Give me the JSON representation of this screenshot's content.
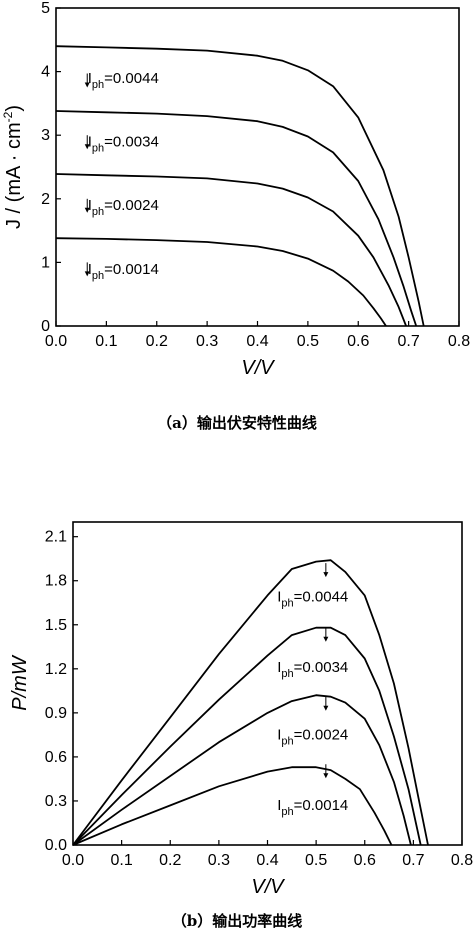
{
  "chart_data": [
    {
      "type": "line",
      "xlabel": "V/V",
      "ylabel": "J / (mA · cm",
      "ylabel_sup": "-2",
      "ylabel_close": ")",
      "xlim": [
        0,
        0.8
      ],
      "ylim": [
        0,
        5
      ],
      "xticks": [
        0.0,
        0.1,
        0.2,
        0.3,
        0.4,
        0.5,
        0.6,
        0.7,
        0.8
      ],
      "xtick_labels": [
        "0.0",
        "0.1",
        "0.2",
        "0.3",
        "0.4",
        "0.5",
        "0.6",
        "0.7",
        "0.8"
      ],
      "yticks": [
        0,
        1,
        2,
        3,
        4,
        5
      ],
      "ytick_labels": [
        "0",
        "1",
        "2",
        "3",
        "4",
        "5"
      ],
      "grid": false,
      "caption": "（a）输出伏安特性曲线",
      "series": [
        {
          "label_prefix": "I",
          "label_sub": "ph",
          "label_value": "=0.0044",
          "label_anchor": [
            0.062,
            3.97
          ],
          "label_pos": [
            0.063,
            3.82
          ],
          "x": [
            0.0,
            0.1,
            0.2,
            0.3,
            0.4,
            0.45,
            0.5,
            0.55,
            0.6,
            0.65,
            0.68,
            0.7,
            0.72,
            0.73
          ],
          "y": [
            4.4,
            4.38,
            4.36,
            4.33,
            4.25,
            4.17,
            4.02,
            3.77,
            3.28,
            2.45,
            1.72,
            1.08,
            0.38,
            0.0
          ]
        },
        {
          "label_prefix": "I",
          "label_sub": "ph",
          "label_value": "=0.0034",
          "label_anchor": [
            0.062,
            3.0
          ],
          "label_pos": [
            0.063,
            2.82
          ],
          "x": [
            0.0,
            0.1,
            0.2,
            0.3,
            0.4,
            0.45,
            0.5,
            0.55,
            0.6,
            0.64,
            0.67,
            0.69,
            0.705,
            0.715
          ],
          "y": [
            3.38,
            3.36,
            3.34,
            3.3,
            3.22,
            3.13,
            2.98,
            2.73,
            2.28,
            1.68,
            1.08,
            0.62,
            0.24,
            0.0
          ]
        },
        {
          "label_prefix": "I",
          "label_sub": "ph",
          "label_value": "=0.0024",
          "label_anchor": [
            0.062,
            2.0
          ],
          "label_pos": [
            0.063,
            1.82
          ],
          "x": [
            0.0,
            0.1,
            0.2,
            0.3,
            0.4,
            0.45,
            0.5,
            0.55,
            0.6,
            0.63,
            0.66,
            0.68,
            0.695
          ],
          "y": [
            2.39,
            2.37,
            2.35,
            2.32,
            2.24,
            2.16,
            2.02,
            1.8,
            1.42,
            1.08,
            0.64,
            0.3,
            0.0
          ]
        },
        {
          "label_prefix": "I",
          "label_sub": "ph",
          "label_value": "=0.0014",
          "label_anchor": [
            0.062,
            1.0
          ],
          "label_pos": [
            0.063,
            0.82
          ],
          "x": [
            0.0,
            0.1,
            0.2,
            0.3,
            0.4,
            0.45,
            0.5,
            0.55,
            0.58,
            0.61,
            0.63,
            0.645,
            0.655
          ],
          "y": [
            1.38,
            1.37,
            1.35,
            1.32,
            1.25,
            1.18,
            1.06,
            0.87,
            0.7,
            0.48,
            0.28,
            0.12,
            0.0
          ]
        }
      ]
    },
    {
      "type": "line",
      "xlabel": "V/V",
      "ylabel": "P/mW",
      "xlim": [
        0,
        0.8
      ],
      "ylim": [
        0,
        2.2
      ],
      "xticks": [
        0.0,
        0.1,
        0.2,
        0.3,
        0.4,
        0.5,
        0.6,
        0.7,
        0.8
      ],
      "xtick_labels": [
        "0.0",
        "0.1",
        "0.2",
        "0.3",
        "0.4",
        "0.5",
        "0.6",
        "0.7",
        "0.8"
      ],
      "yticks": [
        0.0,
        0.3,
        0.6,
        0.9,
        1.2,
        1.5,
        1.8,
        2.1
      ],
      "ytick_labels": [
        "0.0",
        "0.3",
        "0.6",
        "0.9",
        "1.2",
        "1.5",
        "1.8",
        "2.1"
      ],
      "grid": false,
      "caption": "（b）输出功率曲线",
      "series": [
        {
          "label_prefix": "I",
          "label_sub": "ph",
          "label_value": "=0.0044",
          "label_anchor": [
            0.52,
            1.92
          ],
          "label_pos": [
            0.42,
            1.66
          ],
          "x": [
            0.0,
            0.1,
            0.2,
            0.3,
            0.4,
            0.45,
            0.5,
            0.53,
            0.56,
            0.6,
            0.63,
            0.66,
            0.69,
            0.71,
            0.73
          ],
          "y": [
            0.0,
            0.44,
            0.87,
            1.3,
            1.7,
            1.88,
            1.93,
            1.94,
            1.86,
            1.7,
            1.43,
            1.1,
            0.66,
            0.33,
            0.0
          ]
        },
        {
          "label_prefix": "I",
          "label_sub": "ph",
          "label_value": "=0.0034",
          "label_anchor": [
            0.52,
            1.48
          ],
          "label_pos": [
            0.42,
            1.18
          ],
          "x": [
            0.0,
            0.1,
            0.2,
            0.3,
            0.4,
            0.45,
            0.5,
            0.53,
            0.56,
            0.6,
            0.63,
            0.66,
            0.69,
            0.715
          ],
          "y": [
            0.0,
            0.34,
            0.67,
            0.99,
            1.29,
            1.43,
            1.48,
            1.48,
            1.43,
            1.27,
            1.05,
            0.74,
            0.38,
            0.0
          ]
        },
        {
          "label_prefix": "I",
          "label_sub": "ph",
          "label_value": "=0.0024",
          "label_anchor": [
            0.52,
            1.01
          ],
          "label_pos": [
            0.42,
            0.72
          ],
          "x": [
            0.0,
            0.1,
            0.2,
            0.3,
            0.4,
            0.45,
            0.5,
            0.53,
            0.56,
            0.6,
            0.63,
            0.66,
            0.68,
            0.695
          ],
          "y": [
            0.0,
            0.24,
            0.47,
            0.7,
            0.9,
            0.98,
            1.02,
            1.01,
            0.97,
            0.86,
            0.68,
            0.43,
            0.2,
            0.0
          ]
        },
        {
          "label_prefix": "I",
          "label_sub": "ph",
          "label_value": "=0.0014",
          "label_anchor": [
            0.52,
            0.55
          ],
          "label_pos": [
            0.42,
            0.24
          ],
          "x": [
            0.0,
            0.1,
            0.2,
            0.3,
            0.4,
            0.45,
            0.5,
            0.53,
            0.56,
            0.59,
            0.62,
            0.64,
            0.655
          ],
          "y": [
            0.0,
            0.14,
            0.27,
            0.4,
            0.5,
            0.53,
            0.53,
            0.51,
            0.45,
            0.38,
            0.22,
            0.1,
            0.0
          ]
        }
      ]
    }
  ]
}
